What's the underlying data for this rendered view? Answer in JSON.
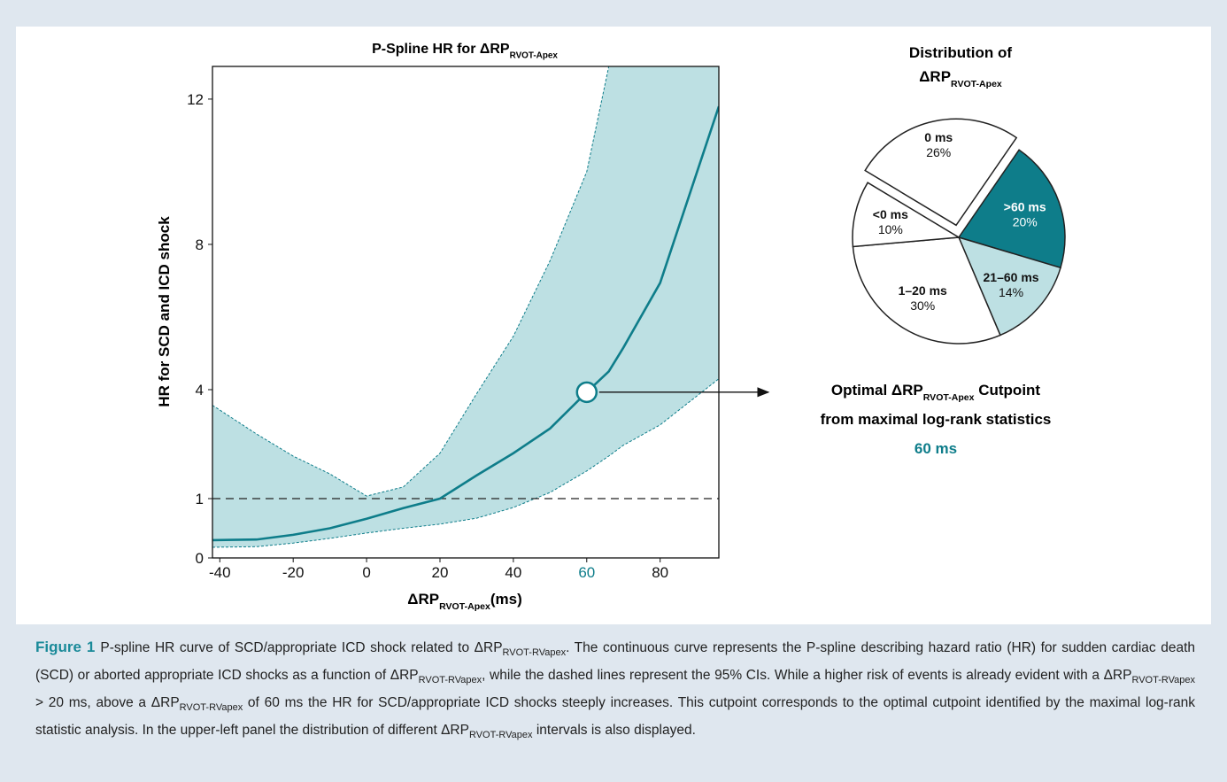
{
  "chart_data": [
    {
      "type": "line",
      "title": "P-Spline HR for ΔRP",
      "title_sub": "RVOT-Apex",
      "x_label": "ΔRP",
      "x_label_sub": "RVOT-Apex",
      "x_label_end": "(ms)",
      "y_label": "HR for SCD and ICD shock",
      "x": [
        -42,
        -30,
        -20,
        -10,
        0,
        10,
        20,
        30,
        40,
        50,
        60,
        66,
        70,
        80,
        96
      ],
      "values": [
        0.3,
        0.31,
        0.39,
        0.5,
        0.66,
        0.84,
        1.0,
        1.64,
        2.25,
        2.93,
        3.93,
        4.5,
        5.16,
        6.94,
        11.8
      ],
      "ci_upper": [
        3.57,
        2.78,
        2.17,
        1.68,
        1.07,
        1.32,
        2.25,
        3.89,
        5.47,
        7.55,
        10.0,
        12.9,
        null,
        null,
        null
      ],
      "ci_lower": [
        0.18,
        0.19,
        0.25,
        0.33,
        0.42,
        0.5,
        0.57,
        0.67,
        0.85,
        1.17,
        1.76,
        2.17,
        2.47,
        3.03,
        4.3
      ],
      "color": "#0e7d8a",
      "band_color": "#bde0e3",
      "reference_line": 1,
      "xlim": [
        -42,
        96
      ],
      "xticks": [
        -40,
        -20,
        0,
        20,
        40,
        60,
        80
      ],
      "ylim": [
        0,
        12.9
      ],
      "yticks": [
        0,
        1,
        4,
        8,
        12
      ]
    },
    {
      "type": "pie",
      "title": "Distribution of",
      "title2": "ΔRP",
      "title2_sub": "RVOT-Apex",
      "categories": [
        "0 ms",
        ">60 ms",
        "21–60 ms",
        "1–20 ms",
        "<0 ms"
      ],
      "values": [
        26,
        20,
        14,
        30,
        10
      ],
      "value_labels": [
        "26%",
        "20%",
        "14%",
        "30%",
        "10%"
      ],
      "colors": [
        "#ffffff",
        "#0e7d8a",
        "#bde0e3",
        "#ffffff",
        "#ffffff"
      ],
      "explode": [
        true,
        false,
        false,
        false,
        false
      ]
    }
  ],
  "annotation": {
    "line1": "Optimal ΔRP",
    "line1_sub": "RVOT-Apex",
    "line1_end": " Cutpoint",
    "line2": "from maximal log-rank statistics",
    "value": 60,
    "value_label": "60 ms"
  },
  "caption": {
    "label": "Figure 1",
    "segments": [
      "P-spline HR curve of SCD/appropriate ICD shock related to ΔRP",
      "RVOT-RVapex",
      ". The continuous curve represents the P-spline describing hazard ratio (HR) for sudden cardiac death (SCD) or aborted appropriate ICD shocks as a function of ΔRP",
      "RVOT-RVapex",
      ", while the dashed lines represent the 95% CIs. While a higher risk of events is already evident with a ΔRP",
      "RVOT-RVapex",
      " > 20 ms, above a ΔRP",
      "RVOT-RVapex",
      " of 60 ms the HR for SCD/appropriate ICD shocks steeply increases. This cutpoint corresponds to the optimal cutpoint identified by the maximal log-rank statistic analysis. In the upper-left panel the distribution of different ΔRP",
      "RVOT-RVapex",
      " intervals is also displayed."
    ]
  }
}
